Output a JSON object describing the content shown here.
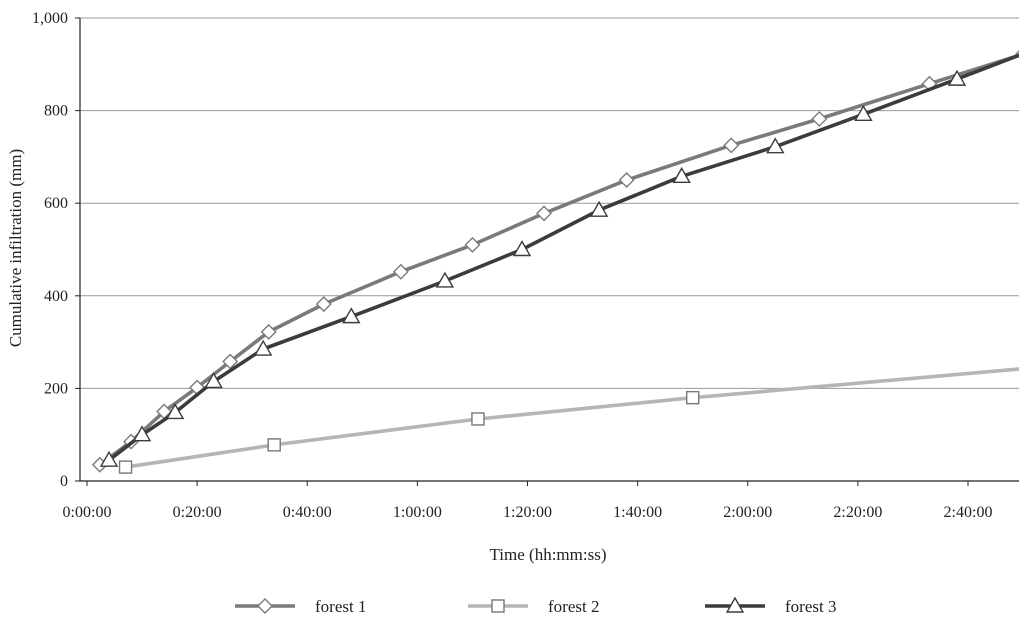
{
  "chart_data": {
    "type": "line",
    "title": "",
    "xlabel": "Time (hh:mm:ss)",
    "ylabel": "Cumulative infiltration (mm)",
    "xlim": [
      0,
      10560
    ],
    "ylim": [
      0,
      1000
    ],
    "x_ticks": [
      {
        "value": 0,
        "label": "0:00:00"
      },
      {
        "value": 1200,
        "label": "0:20:00"
      },
      {
        "value": 2400,
        "label": "0:40:00"
      },
      {
        "value": 3600,
        "label": "1:00:00"
      },
      {
        "value": 4800,
        "label": "1:20:00"
      },
      {
        "value": 6000,
        "label": "1:40:00"
      },
      {
        "value": 7200,
        "label": "2:00:00"
      },
      {
        "value": 8400,
        "label": "2:20:00"
      },
      {
        "value": 9600,
        "label": "2:40:00"
      }
    ],
    "y_ticks": [
      {
        "value": 0,
        "label": "0"
      },
      {
        "value": 200,
        "label": "200"
      },
      {
        "value": 400,
        "label": "400"
      },
      {
        "value": 600,
        "label": "600"
      },
      {
        "value": 800,
        "label": "800"
      },
      {
        "value": 1000,
        "label": "1,000"
      }
    ],
    "grid": "horizontal",
    "legend_position": "bottom",
    "series": [
      {
        "name": "forest 1",
        "color": "#7a7a7a",
        "marker": "diamond",
        "points": [
          [
            140,
            35
          ],
          [
            480,
            85
          ],
          [
            840,
            150
          ],
          [
            1200,
            202
          ],
          [
            1560,
            258
          ],
          [
            1980,
            322
          ],
          [
            2580,
            382
          ],
          [
            3420,
            452
          ],
          [
            4200,
            510
          ],
          [
            4980,
            578
          ],
          [
            5880,
            650
          ],
          [
            7020,
            725
          ],
          [
            7980,
            782
          ],
          [
            9180,
            858
          ],
          [
            10200,
            922
          ]
        ]
      },
      {
        "name": "forest 2",
        "color": "#b5b5b5",
        "marker": "square",
        "points": [
          [
            420,
            30
          ],
          [
            2040,
            78
          ],
          [
            4260,
            134
          ],
          [
            6600,
            180
          ],
          [
            10500,
            248
          ]
        ]
      },
      {
        "name": "forest 3",
        "color": "#3c3c3c",
        "marker": "triangle",
        "points": [
          [
            240,
            45
          ],
          [
            600,
            100
          ],
          [
            960,
            148
          ],
          [
            1380,
            215
          ],
          [
            1920,
            285
          ],
          [
            2880,
            355
          ],
          [
            3900,
            432
          ],
          [
            4740,
            500
          ],
          [
            5580,
            585
          ],
          [
            6480,
            658
          ],
          [
            7500,
            722
          ],
          [
            8460,
            792
          ],
          [
            9480,
            868
          ],
          [
            10560,
            950
          ]
        ]
      }
    ]
  }
}
